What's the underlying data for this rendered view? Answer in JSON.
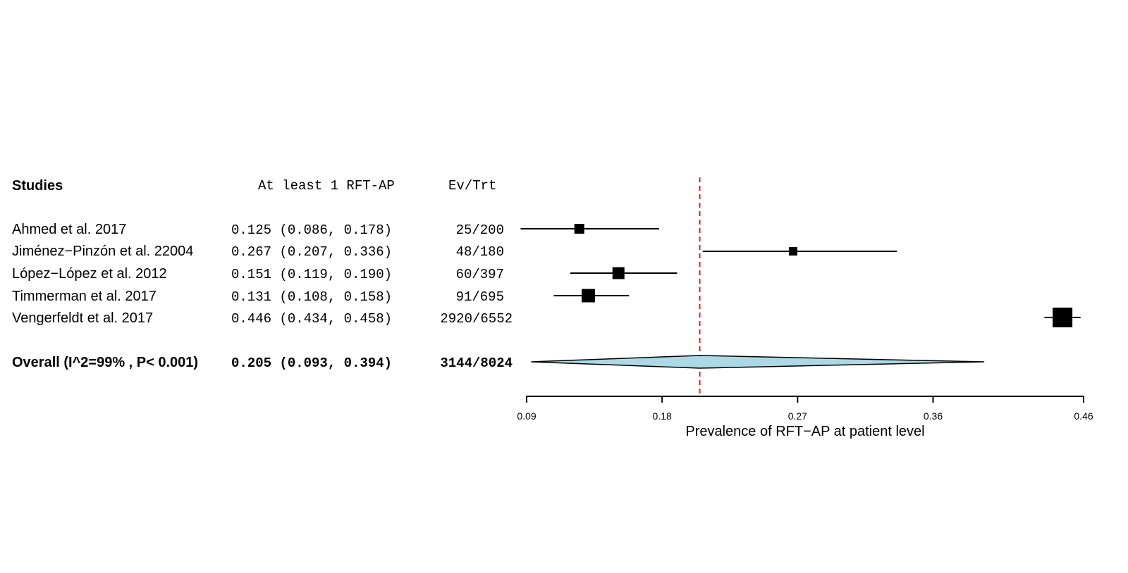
{
  "chart_data": {
    "type": "forest",
    "headers": {
      "studies": "Studies",
      "estimate": "At least 1 RFT-AP",
      "events": "Ev/Trt"
    },
    "studies": [
      {
        "label": "Ahmed et al. 2017",
        "est": 0.125,
        "lo": 0.086,
        "hi": 0.178,
        "ci_text": "0.125 (0.086, 0.178)",
        "events": "25/200"
      },
      {
        "label": "Jiménez−Pinzón et al. 22004",
        "est": 0.267,
        "lo": 0.207,
        "hi": 0.336,
        "ci_text": "0.267 (0.207, 0.336)",
        "events": "48/180"
      },
      {
        "label": "López−López et al. 2012",
        "est": 0.151,
        "lo": 0.119,
        "hi": 0.19,
        "ci_text": "0.151 (0.119, 0.190)",
        "events": "60/397"
      },
      {
        "label": "Timmerman et al. 2017",
        "est": 0.131,
        "lo": 0.108,
        "hi": 0.158,
        "ci_text": "0.131 (0.108, 0.158)",
        "events": "91/695"
      },
      {
        "label": "Vengerfeldt et al. 2017",
        "est": 0.446,
        "lo": 0.434,
        "hi": 0.458,
        "ci_text": "0.446 (0.434, 0.458)",
        "events": "2920/6552"
      }
    ],
    "overall": {
      "label": "Overall (I^2=99% , P< 0.001)",
      "est": 0.205,
      "lo": 0.093,
      "hi": 0.394,
      "ci_text": "0.205 (0.093, 0.394)",
      "events": "3144/8024"
    },
    "xlim": [
      0.09,
      0.46
    ],
    "ticks": [
      0.09,
      0.18,
      0.27,
      0.36,
      0.46
    ],
    "tick_labels": [
      "0.09",
      "0.18",
      "0.27",
      "0.36",
      "0.46"
    ],
    "xlabel": "Prevalence of RFT−AP at patient level",
    "reference_line": 0.205,
    "colors": {
      "reference_line": "#e41a1c",
      "diamond_fill": "#add8e6",
      "marker": "#000000"
    }
  }
}
